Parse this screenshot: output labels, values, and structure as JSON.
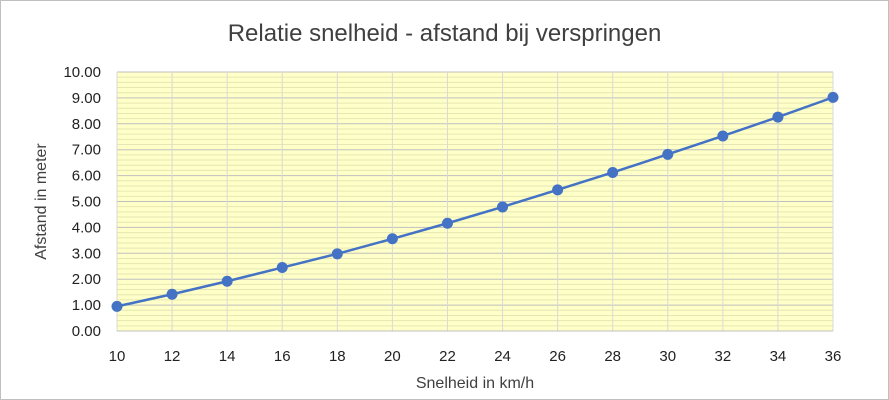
{
  "chart_data": {
    "type": "line",
    "title": "Relatie snelheid - afstand bij verspringen",
    "xlabel": "Snelheid in km/h",
    "ylabel": "Afstand in meter",
    "xlim": [
      10,
      36
    ],
    "ylim": [
      0,
      10
    ],
    "x_ticks": [
      "10",
      "12",
      "14",
      "16",
      "18",
      "20",
      "22",
      "24",
      "26",
      "28",
      "30",
      "32",
      "34",
      "36"
    ],
    "y_ticks": [
      "0.00",
      "1.00",
      "2.00",
      "3.00",
      "4.00",
      "5.00",
      "6.00",
      "7.00",
      "8.00",
      "9.00",
      "10.00"
    ],
    "grid": true,
    "legend": "none",
    "series": [
      {
        "x": [
          10,
          12,
          14,
          16,
          18,
          20,
          22,
          24,
          26,
          28,
          30,
          32,
          34,
          36
        ],
        "values": [
          0.95,
          1.42,
          1.92,
          2.45,
          2.98,
          3.56,
          4.16,
          4.79,
          5.45,
          6.12,
          6.82,
          7.53,
          8.26,
          9.02
        ],
        "color": "#4472c4"
      }
    ],
    "plot_background": "#ffffc8",
    "gridline_color": "#d9d9d9"
  }
}
